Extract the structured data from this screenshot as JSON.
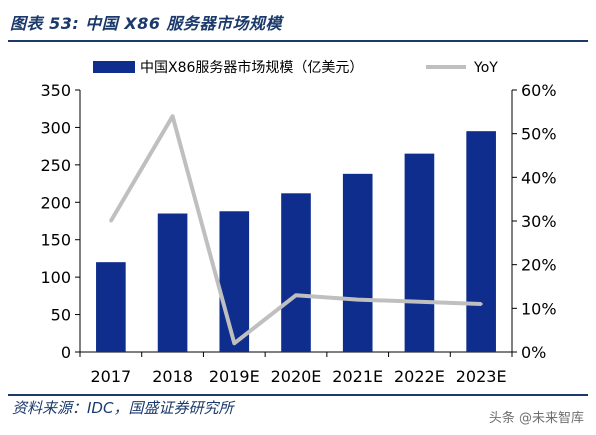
{
  "caption": "图表 53:   中国 X86 服务器市场规模",
  "source": "资料来源：IDC，国盛证券研究所",
  "watermark": "头条 @未来智库",
  "colors": {
    "bar": "#0e2d8c",
    "line": "#bfbfbf",
    "text": "#1b3a6b",
    "axis": "#000000"
  },
  "chart_data": {
    "type": "bar",
    "categories": [
      "2017",
      "2018",
      "2019E",
      "2020E",
      "2021E",
      "2022E",
      "2023E"
    ],
    "series": [
      {
        "name": "中国X86服务器市场规模（亿美元）",
        "type": "bar",
        "axis": "left",
        "values": [
          120,
          185,
          188,
          212,
          238,
          265,
          295
        ]
      },
      {
        "name": "YoY",
        "type": "line",
        "axis": "right",
        "values": [
          30.0,
          54.0,
          2.0,
          13.0,
          12.0,
          11.5,
          11.0
        ]
      }
    ],
    "ylim": [
      0,
      350
    ],
    "yticks": [
      "0",
      "50",
      "100",
      "150",
      "200",
      "250",
      "300",
      "350"
    ],
    "y2lim": [
      0,
      60
    ],
    "y2ticks": [
      "0%",
      "10%",
      "20%",
      "30%",
      "40%",
      "50%",
      "60%"
    ],
    "legend_position": "top",
    "grid": false
  }
}
